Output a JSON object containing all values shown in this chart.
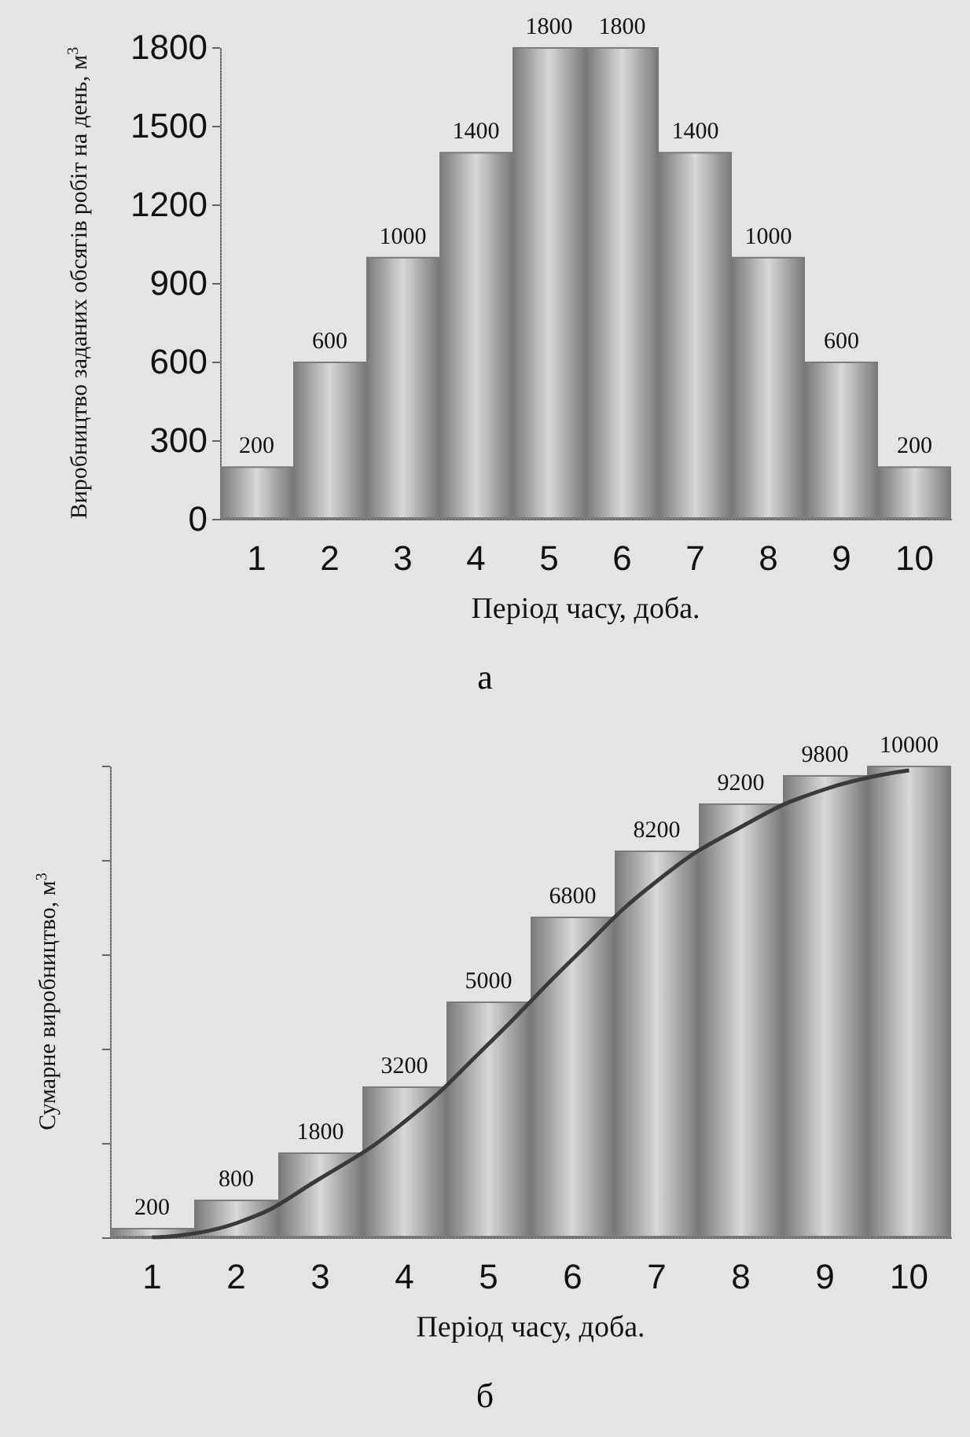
{
  "chart_data": [
    {
      "type": "bar",
      "xlabel": "Період часу, доба.",
      "ylabel": "Виробництво заданих обсягів робіт на день, м$^{3}$",
      "categories": [
        "1",
        "2",
        "3",
        "4",
        "5",
        "6",
        "7",
        "8",
        "9",
        "10"
      ],
      "values": [
        200,
        600,
        1000,
        1400,
        1800,
        1800,
        1400,
        1000,
        600,
        200
      ],
      "color": "#7a7a7a",
      "ylim": [
        0,
        1800
      ],
      "yticks": [
        0,
        300,
        600,
        900,
        1200,
        1500,
        1800
      ],
      "data_labels": true,
      "grid": false,
      "annotations": [
        "а"
      ]
    },
    {
      "type": "bar",
      "xlabel": "Період часу, доба.",
      "ylabel": "Сумарне виробництво, м$^{3}$",
      "categories": [
        "1",
        "2",
        "3",
        "4",
        "5",
        "6",
        "7",
        "8",
        "9",
        "10"
      ],
      "series": [
        {
          "color": "#7a7a7a",
          "values": [
            200,
            800,
            1800,
            3200,
            5000,
            6800,
            8200,
            9200,
            9800,
            10000
          ],
          "value_labels": [
            "200",
            "800",
            "1800",
            "3200",
            "5000",
            "6800",
            "8200",
            "9200",
            "9800",
            "10000"
          ]
        },
        {
          "type": "line",
          "color": "#3a3a3a",
          "values": [
            0,
            300,
            1250,
            2450,
            4100,
            5900,
            7550,
            8700,
            9500,
            9900
          ]
        }
      ],
      "grid": false,
      "tick_labels": "x",
      "marker": "none",
      "annotations": [
        "б"
      ]
    }
  ]
}
